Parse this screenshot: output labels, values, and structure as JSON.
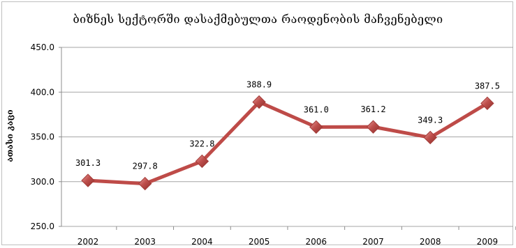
{
  "chart_data": {
    "type": "line",
    "title": "ბიზნეს სექტორში დასაქმებულთა რაოდენობის მაჩვენებელი",
    "xlabel": "",
    "ylabel": "ათასი კაცი",
    "ylim": [
      250,
      450
    ],
    "yticks": [
      "250.0",
      "300.0",
      "350.0",
      "400.0",
      "450.0"
    ],
    "grid": true,
    "legend": "none",
    "categories": [
      "2002",
      "2003",
      "2004",
      "2005",
      "2006",
      "2007",
      "2008",
      "2009"
    ],
    "series": [
      {
        "values": [
          301.3,
          297.8,
          322.8,
          388.9,
          361.0,
          361.2,
          349.3,
          387.5
        ],
        "labels": [
          "301.3",
          "297.8",
          "322.8",
          "388.9",
          "361.0",
          "361.2",
          "349.3",
          "387.5"
        ],
        "line_color": "#be4b48",
        "marker_color": "#c0504d"
      }
    ]
  }
}
